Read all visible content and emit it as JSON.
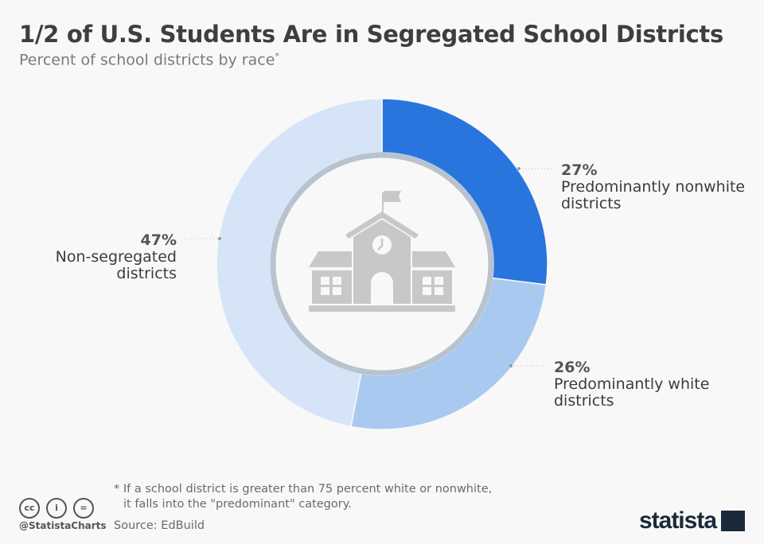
{
  "header": {
    "title": "1/2 of U.S. Students Are in Segregated School Districts",
    "subtitle": "Percent of school districts by race",
    "subtitle_mark": "*"
  },
  "chart_data": {
    "type": "pie",
    "variant": "donut",
    "title": "1/2 of U.S. Students Are in Segregated School Districts",
    "subtitle": "Percent of school districts by race*",
    "slices": [
      {
        "label": "Predominantly nonwhite districts",
        "value": 27,
        "display": "27%",
        "color": "#2876dd"
      },
      {
        "label": "Predominantly white districts",
        "value": 26,
        "display": "26%",
        "color": "#a9c9f1"
      },
      {
        "label": "Non-segregated districts",
        "value": 47,
        "display": "47%",
        "color": "#d6e4f8"
      }
    ],
    "center_icon": "school-building-icon"
  },
  "footer": {
    "note_line1": "* If a school district is greater than 75 percent white or nonwhite,",
    "note_line2": "it falls into the \"predominant\" category.",
    "source": "Source: EdBuild",
    "handle": "@StatistaCharts",
    "brand": "statista",
    "cc_icons": [
      "cc",
      "i",
      "="
    ]
  }
}
